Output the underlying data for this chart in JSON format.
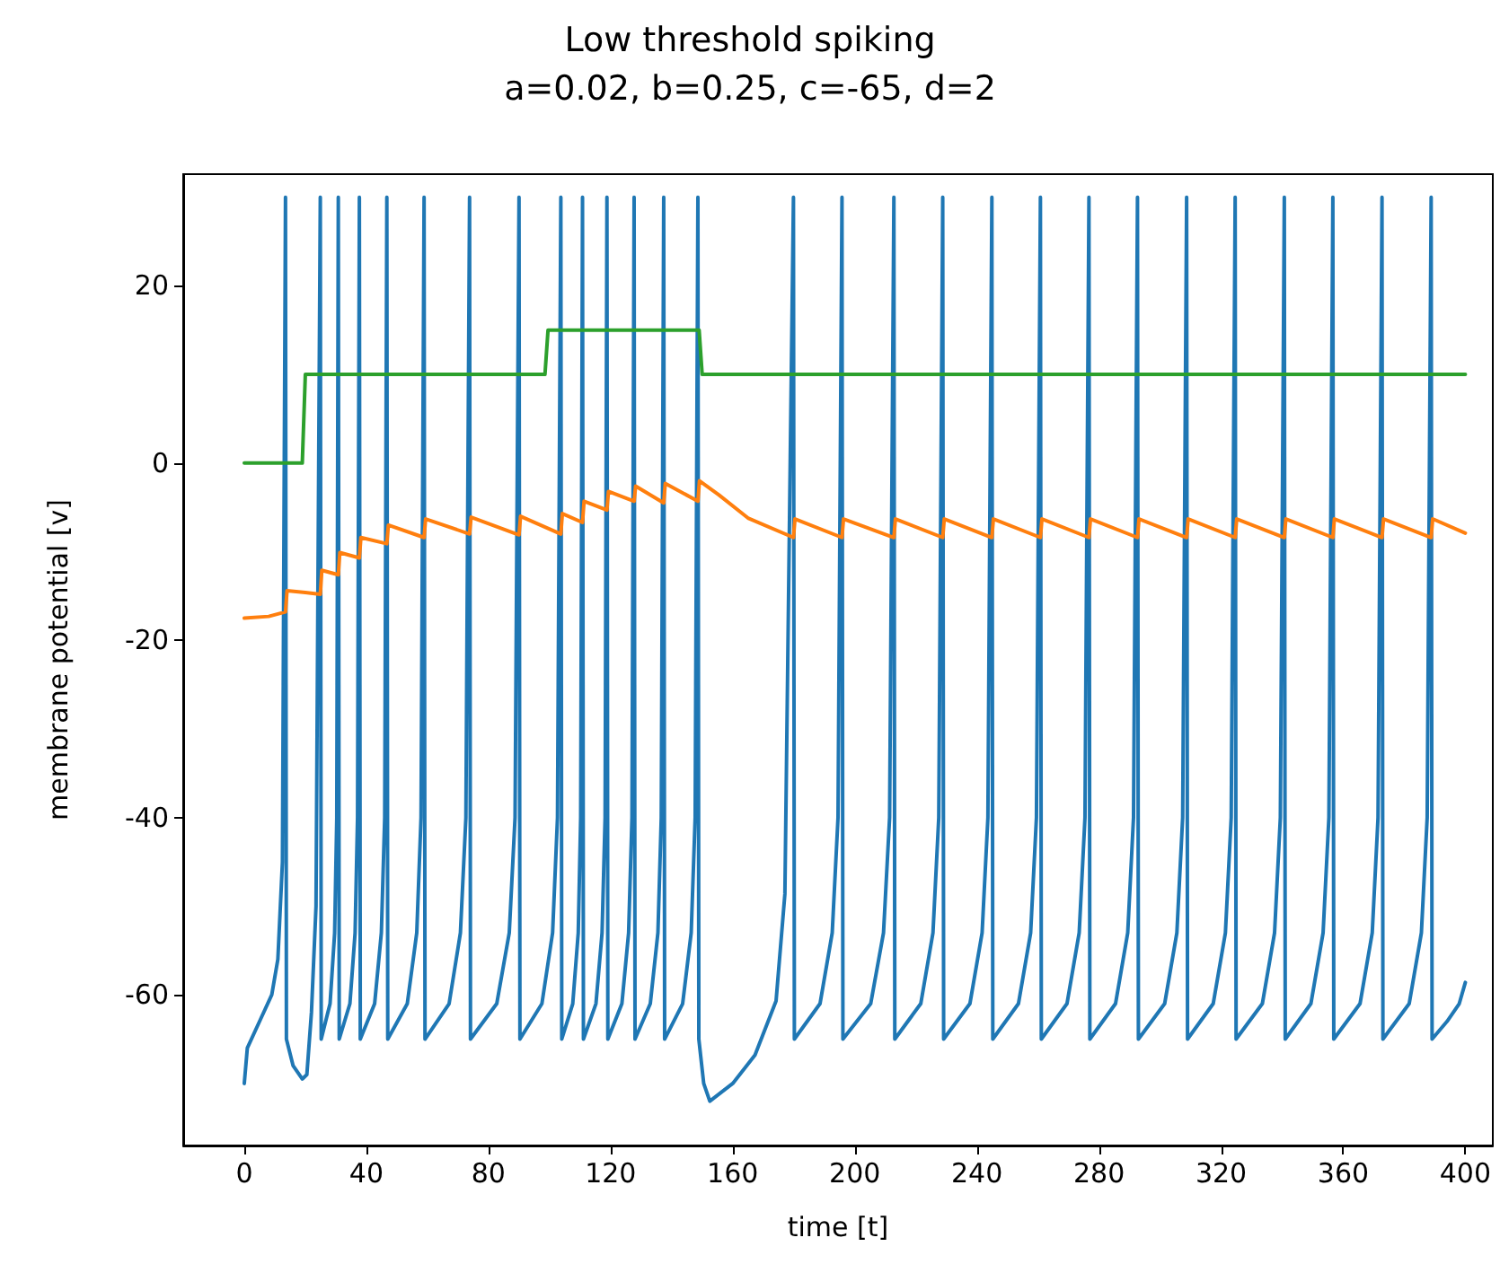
{
  "chart_data": {
    "type": "line",
    "title": "Low threshold spiking",
    "subtitle": "a=0.02, b=0.25, c=-65, d=2",
    "xlabel": "time [t]",
    "ylabel": "membrane potential [v]",
    "xlim": [
      -20,
      409
    ],
    "ylim": [
      -77,
      32.6
    ],
    "xticks": [
      0,
      40,
      80,
      120,
      160,
      200,
      240,
      280,
      320,
      360,
      400
    ],
    "yticks": [
      -60,
      -40,
      -20,
      0,
      20
    ],
    "grid": false,
    "line_style": "solid",
    "series": [
      {
        "color": "#1f77b4",
        "x": [
          0,
          1,
          5,
          9,
          11,
          12.5,
          13.5,
          13.8,
          16,
          19,
          20.5,
          22,
          23.5,
          24.9,
          25.2,
          28.1,
          29.6,
          30.3,
          30.8,
          31.1,
          34.6,
          36.3,
          37.1,
          37.7,
          38.0,
          42.7,
          44.9,
          46.0,
          46.7,
          47.0,
          53.4,
          56.5,
          57.9,
          58.9,
          59.2,
          67.1,
          70.8,
          72.6,
          73.8,
          74.1,
          82.7,
          86.8,
          88.7,
          90.0,
          90.3,
          97.5,
          101.0,
          102.6,
          103.7,
          104.0,
          107.6,
          109.4,
          110.2,
          110.8,
          111.1,
          115.2,
          117.2,
          118.2,
          118.8,
          119.1,
          123.7,
          125.9,
          127.0,
          127.7,
          128.0,
          133.0,
          135.5,
          136.6,
          137.4,
          137.7,
          143.6,
          146.4,
          147.7,
          148.6,
          148.9,
          150.5,
          152.5,
          160,
          167.3,
          174.2,
          177.1,
          179.9,
          180.2,
          188.6,
          192.6,
          194.5,
          195.8,
          196.1,
          205.2,
          209.4,
          211.4,
          212.8,
          213.1,
          221.6,
          225.6,
          227.5,
          228.8,
          229.1,
          237.7,
          241.7,
          243.6,
          244.9,
          245.2,
          253.6,
          257.6,
          259.5,
          260.8,
          261.1,
          269.5,
          273.5,
          275.4,
          276.7,
          277.0,
          285.4,
          289.4,
          291.3,
          292.6,
          292.9,
          301.5,
          305.5,
          307.4,
          308.7,
          309.0,
          317.4,
          321.4,
          323.3,
          324.6,
          324.9,
          333.5,
          337.5,
          339.4,
          340.7,
          341.0,
          349.4,
          353.4,
          355.3,
          356.6,
          356.9,
          365.5,
          369.5,
          371.4,
          372.7,
          373.0,
          381.6,
          385.6,
          387.5,
          388.8,
          389.1,
          394,
          398,
          400
        ],
        "values": [
          -70,
          -66,
          -63,
          -60,
          -56,
          -45,
          30,
          -65,
          -68,
          -69.5,
          -69,
          -62,
          -50,
          30,
          -65,
          -61,
          -53,
          -40,
          30,
          -65,
          -61,
          -53,
          -40,
          30,
          -65,
          -61,
          -53,
          -40,
          30,
          -65,
          -61,
          -53,
          -40,
          30,
          -65,
          -61,
          -53,
          -40,
          30,
          -65,
          -61,
          -53,
          -40,
          30,
          -65,
          -61,
          -53,
          -40,
          30,
          -65,
          -61,
          -53,
          -40,
          30,
          -65,
          -61,
          -53,
          -40,
          30,
          -65,
          -61,
          -53,
          -40,
          30,
          -65,
          -61,
          -53,
          -40,
          30,
          -65,
          -61,
          -53,
          -40,
          30,
          -65,
          -70,
          -72,
          -70,
          -66.8,
          -60.7,
          -48.6,
          30,
          -65,
          -61,
          -53,
          -40,
          30,
          -65,
          -61,
          -53,
          -40,
          30,
          -65,
          -61,
          -53,
          -40,
          30,
          -65,
          -61,
          -53,
          -40,
          30,
          -65,
          -61,
          -53,
          -40,
          30,
          -65,
          -61,
          -53,
          -40,
          30,
          -65,
          -61,
          -53,
          -40,
          30,
          -65,
          -61,
          -53,
          -40,
          30,
          -65,
          -61,
          -53,
          -40,
          30,
          -65,
          -61,
          -53,
          -40,
          30,
          -65,
          -61,
          -53,
          -40,
          30,
          -65,
          -61,
          -53,
          -40,
          30,
          -65,
          -61,
          -53,
          -40,
          30,
          -65,
          -63,
          -61,
          -58.6
        ]
      },
      {
        "color": "#ff7f0e",
        "x": [
          0,
          8,
          13.5,
          14,
          20,
          24.9,
          25.4,
          30.8,
          31.3,
          37.7,
          38.2,
          46.7,
          47.2,
          58.9,
          59.4,
          73.8,
          74.3,
          90,
          90.5,
          103.7,
          104.2,
          110.8,
          111.3,
          118.8,
          119.3,
          127.7,
          128.2,
          137.4,
          137.9,
          148.6,
          149.1,
          155.5,
          165,
          179.9,
          180.4,
          195.8,
          196.3,
          212.8,
          213.3,
          228.8,
          229.3,
          244.9,
          245.4,
          260.8,
          261.3,
          276.7,
          277.2,
          292.6,
          293.1,
          308.7,
          309.2,
          324.6,
          325.1,
          340.7,
          341.2,
          356.6,
          357.1,
          372.7,
          373.2,
          388.8,
          389.3,
          400
        ],
        "values": [
          -17.5,
          -17.3,
          -16.8,
          -14.4,
          -14.6,
          -14.8,
          -12.1,
          -12.6,
          -10.1,
          -10.7,
          -8.4,
          -9.1,
          -7.0,
          -8.4,
          -6.3,
          -8.0,
          -6.1,
          -8.1,
          -6.0,
          -8.0,
          -5.7,
          -6.7,
          -4.3,
          -5.3,
          -3.2,
          -4.3,
          -2.6,
          -4.5,
          -2.3,
          -4.3,
          -2.0,
          -3.6,
          -6.2,
          -8.4,
          -6.3,
          -8.4,
          -6.3,
          -8.4,
          -6.3,
          -8.4,
          -6.3,
          -8.4,
          -6.3,
          -8.4,
          -6.3,
          -8.4,
          -6.3,
          -8.4,
          -6.3,
          -8.4,
          -6.3,
          -8.4,
          -6.3,
          -8.4,
          -6.3,
          -8.4,
          -6.3,
          -8.4,
          -6.3,
          -8.4,
          -6.3,
          -7.9
        ]
      },
      {
        "color": "#2ca02c",
        "x": [
          0,
          19,
          20,
          98.5,
          99.5,
          149,
          150,
          400
        ],
        "values": [
          0,
          0,
          10,
          10,
          15,
          15,
          10,
          10
        ]
      }
    ]
  }
}
